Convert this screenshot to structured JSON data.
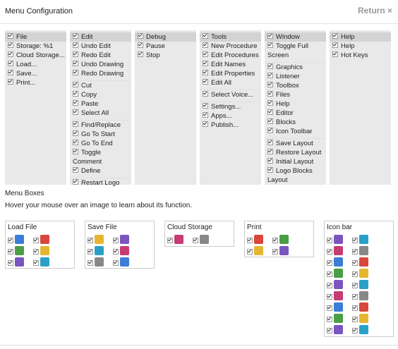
{
  "header": {
    "title": "Menu Configuration",
    "return": "Return ×"
  },
  "menus": [
    {
      "title": "File",
      "groups": [
        [
          "Storage: %1",
          "Cloud Storage...",
          "Load...",
          "Save...",
          "Print..."
        ]
      ]
    },
    {
      "title": "Edit",
      "groups": [
        [
          "Undo Edit",
          "Redo Edit",
          "Undo Drawing",
          "Redo Drawing"
        ],
        [
          "Cut",
          "Copy",
          "Paste",
          "Select All"
        ],
        [
          "Find/Replace",
          "Go To Start",
          "Go To End",
          "Toggle Comment",
          "Define"
        ],
        [
          "Restart Logo"
        ]
      ]
    },
    {
      "title": "Debug",
      "groups": [
        [
          "Pause",
          "Stop"
        ]
      ]
    },
    {
      "title": "Tools",
      "groups": [
        [
          "New Procedure",
          "Edit Procedures",
          "Edit Names",
          "Edit Properties",
          "Edit All"
        ],
        [
          "Select Voice..."
        ],
        [
          "Settings...",
          "Apps...",
          "Publish..."
        ]
      ]
    },
    {
      "title": "Window",
      "groups": [
        [
          "Toggle Full Screen"
        ],
        [
          "Graphics",
          "Listener",
          "Toolbox",
          "Files",
          "Help",
          "Editor",
          "Blocks",
          "Icon Toolbar"
        ],
        [
          "Save Layout",
          "Restore Layout",
          "Initial Layout",
          "Logo Blocks Layout"
        ]
      ]
    },
    {
      "title": "Help",
      "groups": [
        [
          "Help",
          "Hot Keys"
        ]
      ]
    }
  ],
  "boxes_section": {
    "title": "Menu Boxes",
    "hint": "Hover your mouse over an image to learn about its function."
  },
  "boxes": [
    {
      "title": "Load File"
    },
    {
      "title": "Save File"
    },
    {
      "title": "Cloud Storage"
    },
    {
      "title": "Print"
    },
    {
      "title": "Icon bar"
    }
  ]
}
